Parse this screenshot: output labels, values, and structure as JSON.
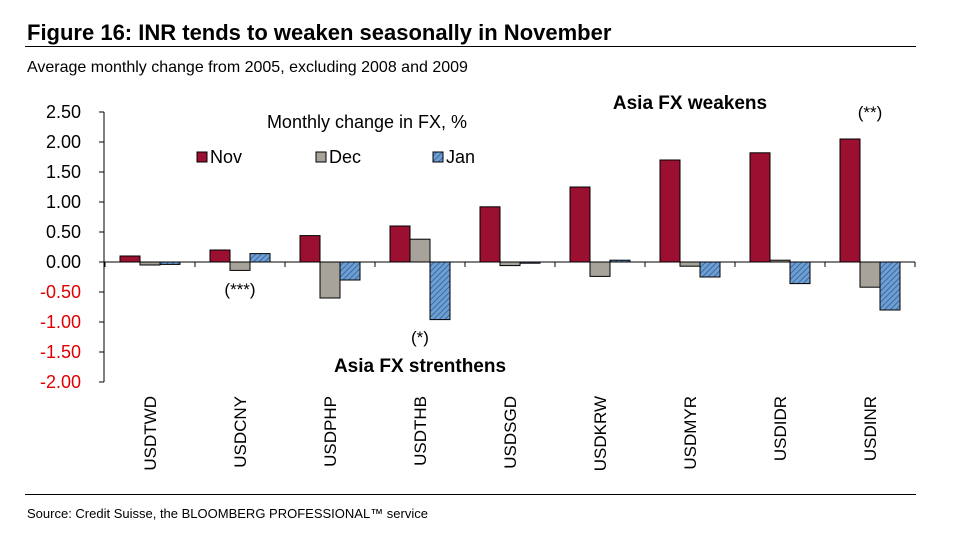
{
  "figure": {
    "title": "Figure 16: INR tends to weaken seasonally in November",
    "subtitle": "Average monthly change from 2005, excluding 2008 and 2009",
    "source": "Source: Credit Suisse, the BLOOMBERG PROFESSIONAL™ service"
  },
  "chart_data": {
    "type": "bar",
    "title": "Monthly change in FX, %",
    "xlabel": "",
    "ylabel": "",
    "ylim": [
      -2.0,
      2.5
    ],
    "yticks": [
      2.5,
      2.0,
      1.5,
      1.0,
      0.5,
      0.0,
      -0.5,
      -1.0,
      -1.5,
      -2.0
    ],
    "ytick_labels": [
      "2.50",
      "2.00",
      "1.50",
      "1.00",
      "0.50",
      "0.00",
      "-0.50",
      "-1.00",
      "-1.50",
      "-2.00"
    ],
    "categories": [
      "USDTWD",
      "USDCNY",
      "USDPHP",
      "USDTHB",
      "USDSGD",
      "USDKRW",
      "USDMYR",
      "USDIDR",
      "USDINR"
    ],
    "series": [
      {
        "name": "Nov",
        "color": "#9b0f30",
        "pattern": "solid",
        "values": [
          0.1,
          0.2,
          0.44,
          0.6,
          0.92,
          1.25,
          1.7,
          1.82,
          2.05
        ]
      },
      {
        "name": "Dec",
        "color": "#a7a39a",
        "pattern": "solid",
        "values": [
          -0.05,
          -0.14,
          -0.6,
          0.38,
          -0.06,
          -0.24,
          -0.07,
          0.03,
          -0.42
        ]
      },
      {
        "name": "Jan",
        "color": "#4f86c0",
        "pattern": "hatched",
        "values": [
          -0.04,
          0.14,
          -0.3,
          -0.96,
          -0.02,
          0.03,
          -0.25,
          -0.36,
          -0.8
        ]
      }
    ],
    "annotations": [
      {
        "text": "(***)",
        "category": "USDCNY",
        "value": -0.55
      },
      {
        "text": "(*)",
        "category": "USDTHB",
        "value": -1.35
      },
      {
        "text": "(**)",
        "category": "USDINR",
        "value": 2.4
      },
      {
        "text": "Asia FX weakens",
        "category": "USDMYR",
        "value": 2.55,
        "bold": true
      },
      {
        "text": "Asia FX strenthens",
        "category": "USDTHB",
        "value": -1.83,
        "bold": true
      }
    ],
    "negative_tick_color": "#e00000",
    "grid": false,
    "legend_position": "top"
  }
}
